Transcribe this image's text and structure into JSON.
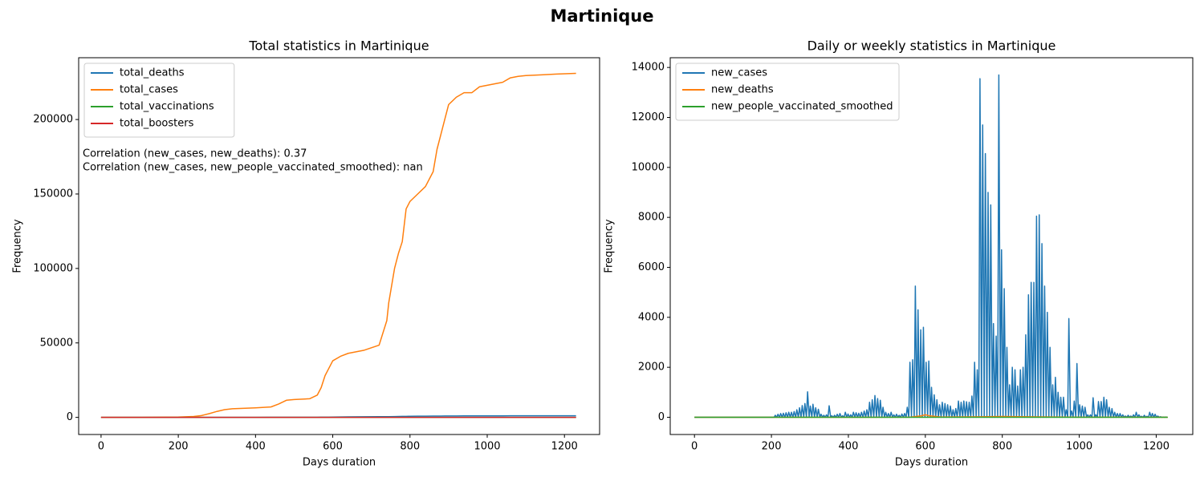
{
  "title": "Martinique",
  "chart_data": [
    {
      "type": "line",
      "title": "Total statistics in Martinique",
      "xlabel": "Days duration",
      "ylabel": "Frequency",
      "annotations": [
        "Correlation (new_cases, new_deaths): 0.37",
        "Correlation (new_cases, new_people_vaccinated_smoothed): nan"
      ],
      "legend": "upper left",
      "xlim": [
        -58,
        1291
      ],
      "xticks": [
        0,
        200,
        400,
        600,
        800,
        1000,
        1200
      ],
      "ylim": [
        -11500,
        241500
      ],
      "yticks": [
        0,
        50000,
        100000,
        150000,
        200000
      ],
      "x": [
        0,
        100,
        200,
        240,
        260,
        280,
        300,
        320,
        340,
        360,
        400,
        440,
        460,
        480,
        500,
        540,
        560,
        570,
        580,
        590,
        600,
        620,
        640,
        680,
        720,
        740,
        745,
        760,
        770,
        780,
        790,
        800,
        820,
        840,
        860,
        870,
        880,
        890,
        900,
        920,
        940,
        960,
        980,
        1000,
        1020,
        1040,
        1060,
        1080,
        1100,
        1140,
        1180,
        1230
      ],
      "series": [
        {
          "name": "total_deaths",
          "color": "#1f77b4",
          "values": [
            0,
            0,
            0,
            1,
            2,
            5,
            10,
            15,
            20,
            25,
            30,
            40,
            45,
            55,
            60,
            80,
            100,
            120,
            150,
            170,
            200,
            300,
            350,
            400,
            450,
            480,
            500,
            560,
            600,
            650,
            700,
            750,
            800,
            830,
            860,
            880,
            900,
            920,
            950,
            980,
            1000,
            1010,
            1020,
            1030,
            1040,
            1050,
            1060,
            1070,
            1080,
            1090,
            1100,
            1110
          ]
        },
        {
          "name": "total_cases",
          "color": "#ff7f0e",
          "values": [
            0,
            10,
            200,
            600,
            1200,
            2500,
            4000,
            5200,
            5800,
            6000,
            6400,
            7000,
            9000,
            11500,
            12000,
            12500,
            15000,
            20000,
            28000,
            33000,
            38000,
            41000,
            43000,
            45000,
            48500,
            65000,
            77000,
            100000,
            110000,
            118000,
            140000,
            145000,
            150000,
            155000,
            165000,
            180000,
            190000,
            200000,
            210000,
            215000,
            218000,
            218000,
            222000,
            223000,
            224000,
            225000,
            228000,
            229000,
            229500,
            230000,
            230500,
            231000
          ]
        },
        {
          "name": "total_vaccinations",
          "color": "#2ca02c",
          "x": [
            0,
            1230
          ],
          "values": [
            0,
            0
          ]
        },
        {
          "name": "total_boosters",
          "color": "#d62728",
          "x": [
            0,
            1230
          ],
          "values": [
            0,
            0
          ]
        }
      ]
    },
    {
      "type": "line",
      "title": "Daily or weekly statistics in Martinique",
      "xlabel": "Days duration",
      "ylabel": "Frequency",
      "legend": "upper left",
      "xlim": [
        -63,
        1295
      ],
      "xticks": [
        0,
        200,
        400,
        600,
        800,
        1000,
        1200
      ],
      "ylim": [
        -690,
        14390
      ],
      "yticks": [
        0,
        2000,
        4000,
        6000,
        8000,
        10000,
        12000,
        14000
      ],
      "series": [
        {
          "name": "new_cases",
          "color": "#1f77b4",
          "x": [
            0,
            207,
            210,
            214,
            217,
            221,
            224,
            228,
            231,
            235,
            238,
            242,
            245,
            249,
            252,
            256,
            259,
            263,
            266,
            270,
            273,
            277,
            280,
            284,
            287,
            291,
            294,
            298,
            301,
            305,
            308,
            312,
            315,
            319,
            322,
            326,
            329,
            333,
            336,
            340,
            343,
            347,
            350,
            354,
            357,
            361,
            364,
            368,
            371,
            375,
            378,
            382,
            385,
            389,
            392,
            396,
            399,
            403,
            406,
            410,
            413,
            417,
            420,
            424,
            427,
            431,
            434,
            438,
            441,
            445,
            448,
            452,
            455,
            459,
            462,
            466,
            469,
            473,
            476,
            480,
            483,
            487,
            490,
            494,
            497,
            501,
            504,
            508,
            511,
            515,
            518,
            522,
            525,
            529,
            532,
            536,
            539,
            543,
            546,
            550,
            553,
            557,
            560,
            564,
            567,
            571,
            574,
            578,
            581,
            585,
            588,
            592,
            595,
            599,
            602,
            606,
            609,
            613,
            616,
            620,
            623,
            627,
            630,
            634,
            637,
            641,
            644,
            648,
            651,
            655,
            658,
            662,
            665,
            669,
            672,
            676,
            679,
            683,
            686,
            690,
            693,
            697,
            700,
            704,
            707,
            711,
            714,
            718,
            721,
            725,
            728,
            732,
            735,
            739,
            742,
            746,
            749,
            753,
            756,
            760,
            763,
            767,
            770,
            774,
            777,
            781,
            784,
            788,
            791,
            795,
            798,
            802,
            805,
            809,
            812,
            816,
            819,
            823,
            826,
            830,
            833,
            837,
            840,
            844,
            847,
            851,
            854,
            858,
            861,
            865,
            868,
            872,
            875,
            879,
            882,
            886,
            889,
            893,
            896,
            900,
            903,
            907,
            910,
            914,
            917,
            921,
            924,
            928,
            931,
            935,
            938,
            942,
            945,
            949,
            952,
            956,
            959,
            963,
            966,
            970,
            973,
            977,
            980,
            984,
            987,
            991,
            994,
            998,
            1001,
            1005,
            1008,
            1012,
            1015,
            1019,
            1022,
            1026,
            1029,
            1033,
            1036,
            1040,
            1043,
            1047,
            1050,
            1054,
            1057,
            1061,
            1064,
            1068,
            1071,
            1075,
            1078,
            1082,
            1085,
            1089,
            1092,
            1096,
            1099,
            1103,
            1106,
            1110,
            1113,
            1117,
            1120,
            1124,
            1127,
            1131,
            1134,
            1138,
            1141,
            1145,
            1148,
            1152,
            1155,
            1159,
            1162,
            1166,
            1169,
            1173,
            1176,
            1180,
            1183,
            1187,
            1190,
            1194,
            1197,
            1201,
            1204,
            1208,
            1211,
            1215,
            1218,
            1222,
            1225,
            1228
          ],
          "values": [
            0,
            0,
            80,
            0,
            120,
            0,
            150,
            0,
            160,
            0,
            180,
            0,
            200,
            0,
            200,
            0,
            230,
            0,
            300,
            0,
            380,
            0,
            470,
            0,
            550,
            0,
            1020,
            0,
            450,
            0,
            520,
            0,
            380,
            0,
            320,
            0,
            120,
            0,
            80,
            0,
            100,
            0,
            460,
            0,
            60,
            0,
            80,
            0,
            120,
            0,
            150,
            0,
            60,
            0,
            200,
            0,
            130,
            0,
            100,
            0,
            200,
            0,
            180,
            0,
            160,
            0,
            200,
            0,
            250,
            0,
            300,
            0,
            600,
            0,
            700,
            0,
            870,
            0,
            750,
            0,
            680,
            0,
            400,
            0,
            200,
            0,
            150,
            0,
            200,
            0,
            100,
            0,
            120,
            0,
            80,
            0,
            130,
            0,
            150,
            0,
            400,
            0,
            2200,
            0,
            2300,
            0,
            5250,
            0,
            4300,
            0,
            3500,
            0,
            3600,
            0,
            2200,
            0,
            2250,
            0,
            1200,
            0,
            900,
            0,
            700,
            0,
            500,
            0,
            600,
            0,
            550,
            0,
            500,
            0,
            450,
            0,
            300,
            0,
            350,
            0,
            650,
            0,
            600,
            0,
            650,
            0,
            620,
            0,
            600,
            0,
            850,
            0,
            2200,
            0,
            1900,
            0,
            13550,
            0,
            11700,
            0,
            10550,
            0,
            9000,
            0,
            8500,
            0,
            3750,
            0,
            3250,
            0,
            13700,
            0,
            6700,
            0,
            5150,
            0,
            2800,
            0,
            1300,
            0,
            2000,
            0,
            1900,
            0,
            1250,
            0,
            1900,
            0,
            2000,
            0,
            3300,
            0,
            4900,
            0,
            5400,
            0,
            5400,
            0,
            8050,
            0,
            8100,
            0,
            6950,
            0,
            5250,
            0,
            4200,
            0,
            2800,
            0,
            1300,
            0,
            1600,
            0,
            1000,
            0,
            800,
            0,
            800,
            0,
            300,
            0,
            3950,
            0,
            250,
            0,
            650,
            0,
            2150,
            0,
            500,
            0,
            450,
            0,
            400,
            0,
            100,
            0,
            100,
            0,
            780,
            0,
            100,
            0,
            630,
            0,
            630,
            0,
            800,
            0,
            700,
            0,
            400,
            0,
            350,
            0,
            200,
            0,
            150,
            0,
            150,
            0,
            100,
            0,
            50,
            0,
            80,
            0,
            50,
            0,
            100,
            0,
            200,
            0,
            100,
            0,
            40,
            0,
            80,
            0,
            40,
            0,
            200,
            0,
            150,
            0,
            120,
            0,
            50,
            0,
            20,
            0,
            10,
            0,
            10,
            0
          ]
        },
        {
          "name": "new_deaths",
          "color": "#ff7f0e",
          "x": [
            0,
            200,
            400,
            560,
            590,
            600,
            610,
            640,
            740,
            800,
            900,
            1000,
            1230
          ],
          "values": [
            0,
            0,
            0,
            5,
            60,
            100,
            60,
            10,
            20,
            30,
            15,
            5,
            0
          ]
        },
        {
          "name": "new_people_vaccinated_smoothed",
          "color": "#2ca02c",
          "x": [
            0,
            1230
          ],
          "values": [
            0,
            0
          ]
        }
      ]
    }
  ]
}
